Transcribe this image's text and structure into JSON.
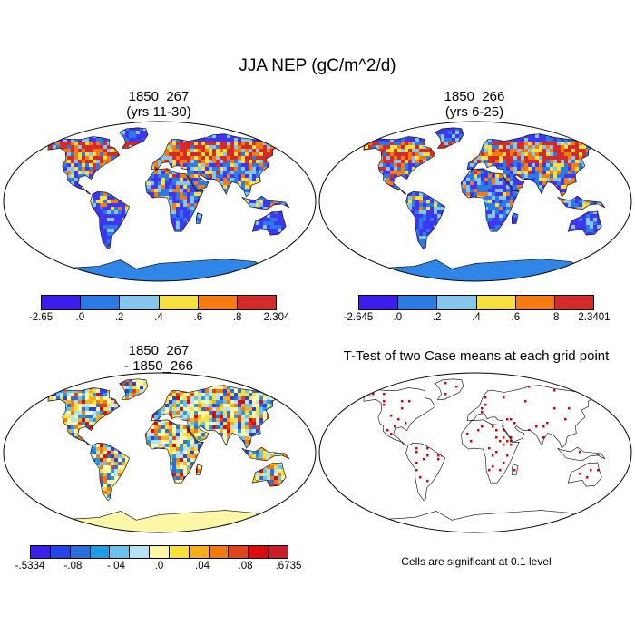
{
  "title": "JJA NEP (gC/m^2/d)",
  "panels": [
    {
      "id": "case1",
      "title_line1": "1850_267",
      "title_line2": "(yrs 11-30)",
      "colorbar": {
        "colors": [
          "#3b1eee",
          "#2b7be6",
          "#84c6ee",
          "#f6e040",
          "#f57a10",
          "#d42a2a"
        ],
        "labels": [
          "-2.65",
          ".0",
          ".2",
          ".4",
          ".6",
          ".8",
          "2.304"
        ]
      }
    },
    {
      "id": "case2",
      "title_line1": "1850_266",
      "title_line2": "(yrs 6-25)",
      "colorbar": {
        "colors": [
          "#3b1eee",
          "#2b7be6",
          "#84c6ee",
          "#f6e040",
          "#f57a10",
          "#d42a2a"
        ],
        "labels": [
          "-2.645",
          ".0",
          ".2",
          ".4",
          ".6",
          ".8",
          "2.3401"
        ]
      }
    },
    {
      "id": "diff",
      "title_line1": "1850_267",
      "title_line2": "- 1850_266",
      "colorbar": {
        "colors": [
          "#3a20e8",
          "#2444e8",
          "#2a6fe0",
          "#1e9ce6",
          "#6cc0ec",
          "#b6e0f4",
          "#fbf7a6",
          "#f8df3a",
          "#f6ae1a",
          "#f27b10",
          "#e0421c",
          "#dc0a0a",
          "#c81e28"
        ],
        "labels": [
          "-.5334",
          "-.08",
          "-.04",
          ".0",
          ".04",
          ".08",
          ".6735"
        ]
      }
    },
    {
      "id": "ttest",
      "title": "T-Test of two Case means at each grid point",
      "note": "Cells are significant at 0.1 level"
    }
  ],
  "map_colors": {
    "ocean": "#ffffff",
    "land_base": "#3e36f0",
    "antarctica": "#2f86e8",
    "diff_land": "#fbf7a6",
    "significant": "#e00000"
  }
}
